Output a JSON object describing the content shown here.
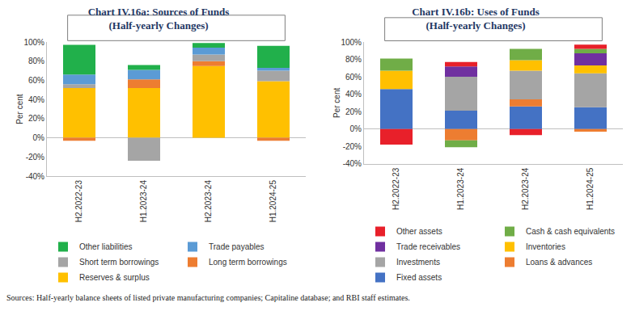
{
  "chart_data": [
    {
      "type": "bar",
      "stacked": true,
      "legend": "bottom",
      "grid": false,
      "title": "Chart IV.16a: Sources of Funds",
      "subtitle": "(Half-yearly Changes)",
      "y_label": "Per cent",
      "categories": [
        "H2.2022-23",
        "H1.2023-24",
        "H2.2023-24",
        "H1.2024-25"
      ],
      "ylim": [
        -40,
        100
      ],
      "yticks": [
        {
          "value": -40,
          "label": "-40%"
        },
        {
          "value": -20,
          "label": "-20%"
        },
        {
          "value": 0,
          "label": "0%"
        },
        {
          "value": 20,
          "label": "20%"
        },
        {
          "value": 40,
          "label": "40%"
        },
        {
          "value": 60,
          "label": "60%"
        },
        {
          "value": 80,
          "label": "80%"
        },
        {
          "value": 100,
          "label": "100%"
        }
      ],
      "series": [
        {
          "name": "Reserves & surplus",
          "color": "#FFC000",
          "values": [
            52,
            52,
            75,
            59
          ]
        },
        {
          "name": "Long term borrowings",
          "color": "#ED7D31",
          "values": [
            -3,
            9,
            5,
            -3
          ]
        },
        {
          "name": "Short term borrowings",
          "color": "#A5A5A5",
          "values": [
            4,
            -24,
            7,
            11
          ]
        },
        {
          "name": "Trade payables",
          "color": "#5B9BD5",
          "values": [
            10,
            10,
            7,
            3
          ]
        },
        {
          "name": "Other liabilities",
          "color": "#21B04B",
          "values": [
            31,
            5,
            5,
            23
          ]
        }
      ]
    },
    {
      "type": "bar",
      "stacked": true,
      "legend": "bottom",
      "grid": false,
      "title": "Chart IV.16b: Uses of Funds",
      "subtitle": "(Half-yearly Changes)",
      "y_label": "Per cent",
      "categories": [
        "H2.2022-23",
        "H1.2023-24",
        "H2.2023-24",
        "H1.2024-25"
      ],
      "ylim": [
        -40,
        100
      ],
      "yticks": [
        {
          "value": -40,
          "label": "-40%"
        },
        {
          "value": -20,
          "label": "-20%"
        },
        {
          "value": 0,
          "label": "0%"
        },
        {
          "value": 20,
          "label": "20%"
        },
        {
          "value": 40,
          "label": "40%"
        },
        {
          "value": 60,
          "label": "60%"
        },
        {
          "value": 80,
          "label": "80%"
        },
        {
          "value": 100,
          "label": "100%"
        }
      ],
      "series": [
        {
          "name": "Fixed assets",
          "color": "#4472C4",
          "values": [
            46,
            21,
            26,
            25
          ]
        },
        {
          "name": "Loans & advances",
          "color": "#ED7D31",
          "values": [
            0,
            -13,
            8,
            -3
          ]
        },
        {
          "name": "Investments",
          "color": "#A5A5A5",
          "values": [
            0,
            39,
            33,
            39
          ]
        },
        {
          "name": "Inventories",
          "color": "#FFC000",
          "values": [
            21,
            0,
            12,
            9
          ]
        },
        {
          "name": "Trade receivables",
          "color": "#7030A0",
          "values": [
            0,
            12,
            0,
            14
          ]
        },
        {
          "name": "Cash & cash equivalents",
          "color": "#70AD47",
          "values": [
            14,
            -8,
            13,
            5
          ]
        },
        {
          "name": "Other assets",
          "color": "#E8202A",
          "values": [
            -18,
            5,
            -7,
            5
          ]
        }
      ]
    }
  ],
  "source": "Sources: Half-yearly balance sheets of listed private manufacturing companies; Capitaline database; and RBI staff estimates."
}
